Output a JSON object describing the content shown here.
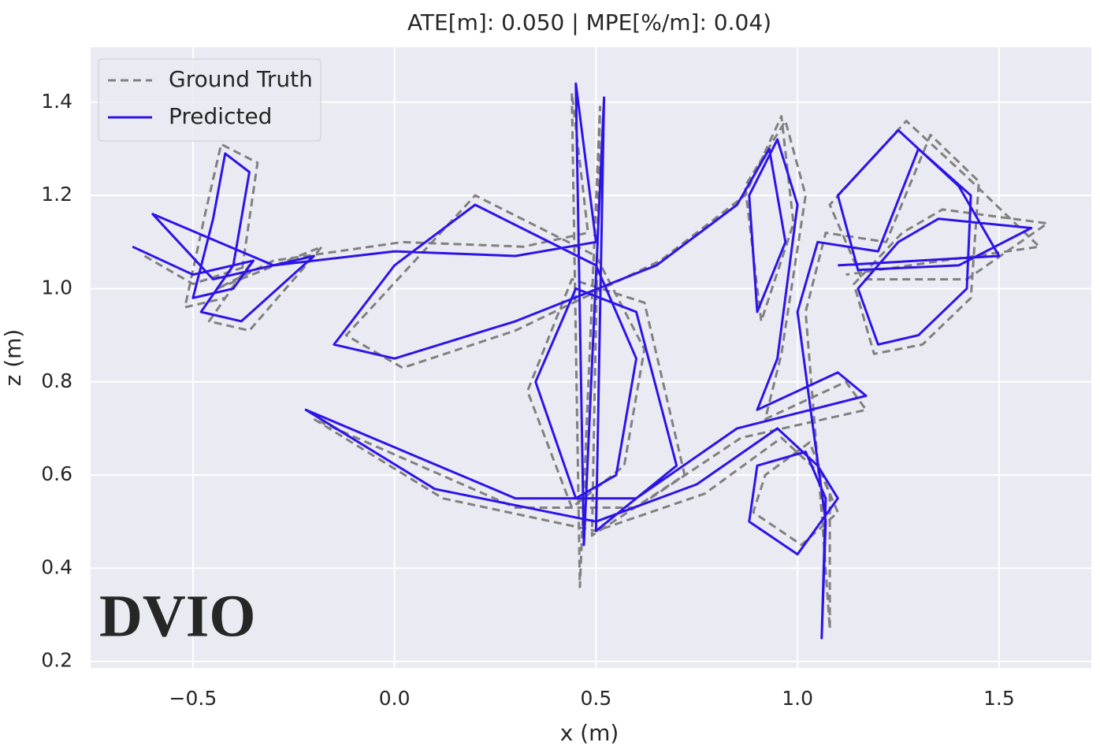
{
  "chart_data": {
    "type": "line",
    "title": "ATE[m]: 0.050 | MPE[%/m]: 0.04)",
    "x_label": "x (m)",
    "y_label": "z (m)",
    "annotation": "DVIO",
    "annotation_color": "#538135",
    "xlim": [
      -0.754,
      1.729
    ],
    "ylim": [
      0.186,
      1.518
    ],
    "xticks": [
      {
        "value": -0.5,
        "label": "−0.5"
      },
      {
        "value": 0.0,
        "label": "0.0"
      },
      0.5,
      {
        "value": 1.0,
        "label": "1.0"
      },
      1.5
    ],
    "yticks": [
      0.2,
      0.4,
      0.6,
      0.8,
      {
        "value": 1.0,
        "label": "1.0"
      },
      1.2,
      1.4
    ],
    "grid": true,
    "legend": "upper left",
    "series": [
      {
        "name": "Ground Truth",
        "color": "#808080",
        "dashed": true,
        "x": [
          -0.62,
          -0.5,
          -0.36,
          -0.42,
          -0.52,
          -0.47,
          -0.43,
          -0.34,
          -0.38,
          -0.46,
          -0.36,
          -0.18,
          -0.44,
          -0.3,
          0.02,
          0.32,
          0.48,
          0.44,
          0.46,
          0.51,
          0.49,
          0.72,
          0.62,
          0.44,
          0.33,
          0.44,
          0.57,
          0.62,
          0.5,
          0.2,
          -0.12,
          0.02,
          0.3,
          0.66,
          0.87,
          0.96,
          0.99,
          0.91,
          0.87,
          0.97,
          1.02,
          0.96,
          0.92,
          1.12,
          1.17,
          0.86,
          0.6,
          0.3,
          -0.2,
          0.12,
          0.5,
          0.77,
          0.96,
          1.06,
          1.1,
          1.01,
          0.89,
          0.92,
          1.03,
          1.08,
          1.08,
          1.06,
          1.02,
          1.07,
          1.22,
          1.33,
          1.45,
          1.43,
          1.31,
          1.19,
          1.14,
          1.26,
          1.36,
          1.62,
          1.42,
          1.16,
          1.08,
          1.27,
          1.42,
          1.6,
          1.12
        ],
        "y": [
          1.07,
          1.01,
          1.05,
          0.98,
          0.96,
          1.16,
          1.31,
          1.27,
          1.03,
          0.93,
          0.91,
          1.09,
          1.0,
          1.06,
          1.1,
          1.09,
          1.12,
          1.42,
          0.36,
          1.39,
          0.47,
          0.6,
          0.97,
          1.02,
          0.78,
          0.53,
          0.62,
          0.87,
          1.07,
          1.2,
          0.9,
          0.83,
          0.91,
          1.06,
          1.2,
          1.37,
          1.14,
          0.93,
          1.22,
          1.36,
          1.2,
          0.86,
          0.72,
          0.8,
          0.74,
          0.68,
          0.53,
          0.53,
          0.72,
          0.55,
          0.48,
          0.56,
          0.68,
          0.6,
          0.52,
          0.45,
          0.52,
          0.6,
          0.67,
          0.56,
          0.27,
          0.52,
          0.95,
          1.12,
          1.1,
          1.33,
          1.23,
          0.98,
          0.88,
          0.86,
          1.01,
          1.12,
          1.17,
          1.14,
          1.02,
          1.02,
          1.18,
          1.36,
          1.24,
          1.09,
          1.03
        ]
      },
      {
        "name": "Predicted",
        "color": "#2c14e8",
        "dashed": false,
        "x": [
          -0.65,
          -0.5,
          -0.35,
          -0.4,
          -0.5,
          -0.45,
          -0.42,
          -0.36,
          -0.4,
          -0.48,
          -0.38,
          -0.2,
          -0.45,
          -0.6,
          -0.3,
          0.0,
          0.3,
          0.5,
          0.45,
          0.47,
          0.52,
          0.5,
          0.7,
          0.6,
          0.45,
          0.35,
          0.45,
          0.55,
          0.6,
          0.5,
          0.2,
          0.0,
          -0.15,
          0.0,
          0.3,
          0.65,
          0.85,
          0.93,
          0.97,
          0.9,
          0.88,
          0.95,
          1.0,
          0.95,
          0.9,
          1.1,
          1.17,
          0.85,
          0.6,
          0.3,
          -0.22,
          0.1,
          0.5,
          0.75,
          0.95,
          1.05,
          1.1,
          1.0,
          0.88,
          0.9,
          1.02,
          1.07,
          1.06,
          1.07,
          1.0,
          1.05,
          1.2,
          1.3,
          1.43,
          1.42,
          1.3,
          1.2,
          1.15,
          1.25,
          1.35,
          1.58,
          1.4,
          1.15,
          1.1,
          1.25,
          1.4,
          1.5,
          1.1
        ],
        "y": [
          1.09,
          1.03,
          1.06,
          1.0,
          0.98,
          1.15,
          1.29,
          1.25,
          1.05,
          0.95,
          0.93,
          1.07,
          1.02,
          1.16,
          1.05,
          1.08,
          1.07,
          1.1,
          1.44,
          0.45,
          1.41,
          0.48,
          0.62,
          0.95,
          1.0,
          0.8,
          0.55,
          0.6,
          0.85,
          1.05,
          1.18,
          1.05,
          0.88,
          0.85,
          0.93,
          1.05,
          1.18,
          1.3,
          1.1,
          0.95,
          1.2,
          1.32,
          1.18,
          0.85,
          0.74,
          0.82,
          0.77,
          0.7,
          0.55,
          0.55,
          0.74,
          0.57,
          0.5,
          0.58,
          0.7,
          0.62,
          0.55,
          0.43,
          0.5,
          0.62,
          0.65,
          0.55,
          0.25,
          0.5,
          0.95,
          1.1,
          1.08,
          1.3,
          1.2,
          1.0,
          0.9,
          0.88,
          1.0,
          1.1,
          1.15,
          1.13,
          1.05,
          1.04,
          1.2,
          1.34,
          1.22,
          1.07,
          1.05
        ]
      }
    ]
  }
}
